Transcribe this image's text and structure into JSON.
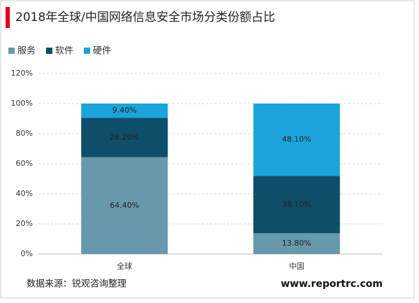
{
  "chart_data": {
    "type": "stacked_bar",
    "title": "2018年全球/中国网络信息安全市场分类份额占比",
    "categories": [
      "全球",
      "中国"
    ],
    "series": [
      {
        "name": "服务",
        "color": "#6798ab",
        "values": [
          64.4,
          13.8
        ],
        "value_labels": [
          "64.40%",
          "13.80%"
        ]
      },
      {
        "name": "软件",
        "color": "#0e4e69",
        "values": [
          26.2,
          38.1
        ],
        "value_labels": [
          "26.20%",
          "38.10%"
        ]
      },
      {
        "name": "硬件",
        "color": "#1ba4db",
        "values": [
          9.4,
          48.1
        ],
        "value_labels": [
          "9.40%",
          "48.10%"
        ]
      }
    ],
    "ylim": [
      0,
      120
    ],
    "yticks": [
      {
        "value": 0,
        "label": "0%"
      },
      {
        "value": 20,
        "label": "20%"
      },
      {
        "value": 40,
        "label": "40%"
      },
      {
        "value": 60,
        "label": "60%"
      },
      {
        "value": 80,
        "label": "80%"
      },
      {
        "value": 100,
        "label": "100%"
      },
      {
        "value": 120,
        "label": "120%"
      }
    ],
    "grid": true,
    "legend": "top-left",
    "source": "数据来源：锐观咨询整理",
    "watermark": "www.reportrc.com"
  }
}
